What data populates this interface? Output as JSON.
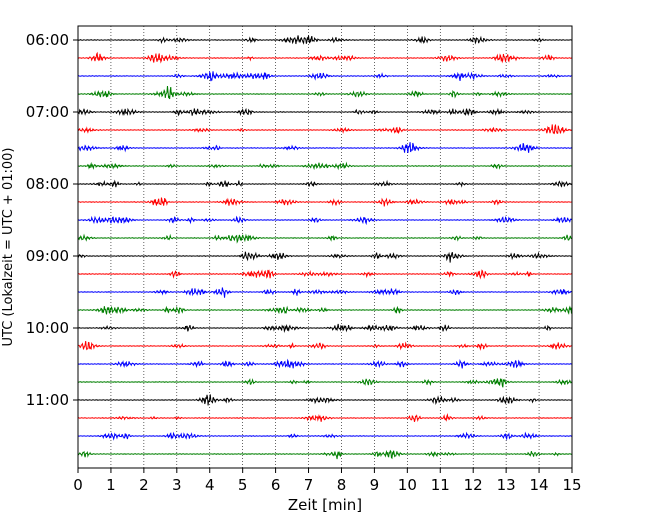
{
  "chart_data": {
    "type": "line",
    "title": "",
    "xlabel": "Zeit  [min]",
    "ylabel": "UTC (Lokalzeit = UTC + 01:00)",
    "xlim": [
      0,
      15
    ],
    "x_ticks": [
      "0",
      "1",
      "2",
      "3",
      "4",
      "5",
      "6",
      "7",
      "8",
      "9",
      "10",
      "11",
      "12",
      "13",
      "14",
      "15"
    ],
    "y_ticks": [
      "06:00",
      "07:00",
      "08:00",
      "09:00",
      "10:00",
      "11:00"
    ],
    "grid": "vertical dotted",
    "legend": "none",
    "trace_interval_minutes": 15,
    "trace_colors": [
      "#000000",
      "#ff0000",
      "#0000ff",
      "#007f00"
    ],
    "series": [
      {
        "start": "06:00",
        "color": "#000000"
      },
      {
        "start": "06:15",
        "color": "#ff0000"
      },
      {
        "start": "06:30",
        "color": "#0000ff"
      },
      {
        "start": "06:45",
        "color": "#007f00"
      },
      {
        "start": "07:00",
        "color": "#000000"
      },
      {
        "start": "07:15",
        "color": "#ff0000"
      },
      {
        "start": "07:30",
        "color": "#0000ff"
      },
      {
        "start": "07:45",
        "color": "#007f00"
      },
      {
        "start": "08:00",
        "color": "#000000"
      },
      {
        "start": "08:15",
        "color": "#ff0000"
      },
      {
        "start": "08:30",
        "color": "#0000ff"
      },
      {
        "start": "08:45",
        "color": "#007f00"
      },
      {
        "start": "09:00",
        "color": "#000000"
      },
      {
        "start": "09:15",
        "color": "#ff0000"
      },
      {
        "start": "09:30",
        "color": "#0000ff"
      },
      {
        "start": "09:45",
        "color": "#007f00"
      },
      {
        "start": "10:00",
        "color": "#000000"
      },
      {
        "start": "10:15",
        "color": "#ff0000"
      },
      {
        "start": "10:30",
        "color": "#0000ff"
      },
      {
        "start": "10:45",
        "color": "#007f00"
      },
      {
        "start": "11:00",
        "color": "#000000"
      },
      {
        "start": "11:15",
        "color": "#ff0000"
      },
      {
        "start": "11:30",
        "color": "#0000ff"
      },
      {
        "start": "11:45",
        "color": "#007f00"
      }
    ]
  }
}
